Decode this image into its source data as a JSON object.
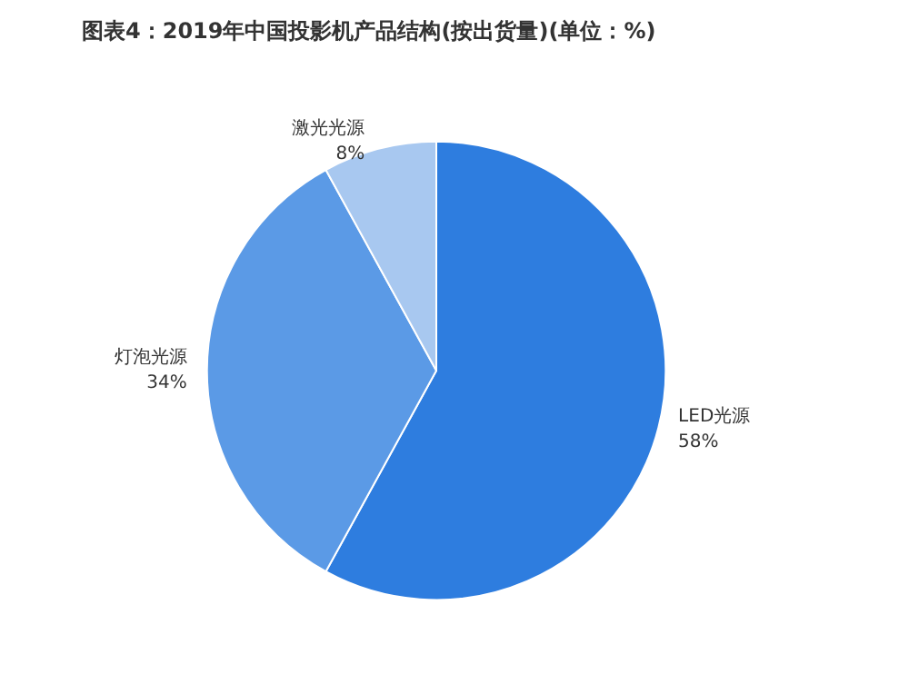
{
  "chart_data": {
    "type": "pie",
    "title": "图表4：2019年中国投影机产品结构(按出货量)(单位：%)",
    "categories": [
      "LED光源",
      "灯泡光源",
      "激光光源"
    ],
    "values": [
      58,
      34,
      8
    ],
    "value_labels": [
      "58%",
      "34%",
      "8%"
    ],
    "colors": [
      "#2e7ddf",
      "#5b9ae6",
      "#a8c8f0"
    ]
  }
}
